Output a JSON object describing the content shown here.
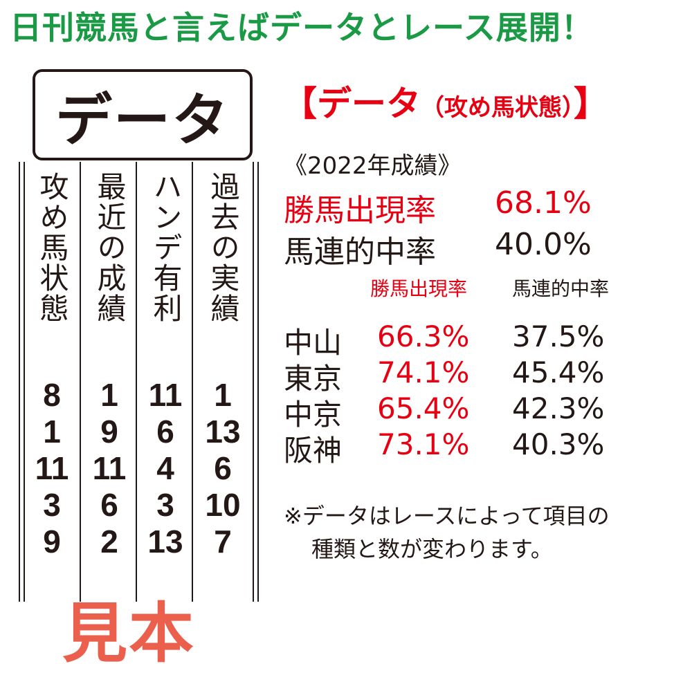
{
  "headline": "日刊競馬と言えばデータとレース展開！",
  "logo": "データ",
  "watermark": "見本",
  "columns": [
    {
      "header": "過去の実績",
      "numbers": [
        "1",
        "13",
        "6",
        "10",
        "7"
      ]
    },
    {
      "header": "ハンデ有利",
      "numbers": [
        "11",
        "6",
        "4",
        "3",
        "13"
      ]
    },
    {
      "header": "最近の成績",
      "numbers": [
        "1",
        "9",
        "11",
        "6",
        "2"
      ]
    },
    {
      "header": "攻め馬状態",
      "numbers": [
        "8",
        "1",
        "11",
        "3",
        "9"
      ]
    }
  ],
  "panel": {
    "title_open": "【データ",
    "title_sub": "（攻め馬状態）",
    "title_close": "】",
    "year": "《2022年成績》",
    "stat1_label": "勝馬出現率",
    "stat1_value": "68.1%",
    "stat2_label": "馬連的中率",
    "stat2_value": "40.0%",
    "col_header1": "勝馬出現率",
    "col_header2": "馬連的中率",
    "venues": [
      {
        "name": "中山",
        "win": "66.3%",
        "quinella": "37.5%"
      },
      {
        "name": "東京",
        "win": "74.1%",
        "quinella": "45.4%"
      },
      {
        "name": "中京",
        "win": "65.4%",
        "quinella": "42.3%"
      },
      {
        "name": "阪神",
        "win": "73.1%",
        "quinella": "40.3%"
      }
    ],
    "note_line1": "※データはレースによって項目の",
    "note_line2": "種類と数が変わります。"
  },
  "colors": {
    "headline": "#1a9a44",
    "accent": "#e60012",
    "watermark": "#e8442e",
    "text": "#231815"
  }
}
